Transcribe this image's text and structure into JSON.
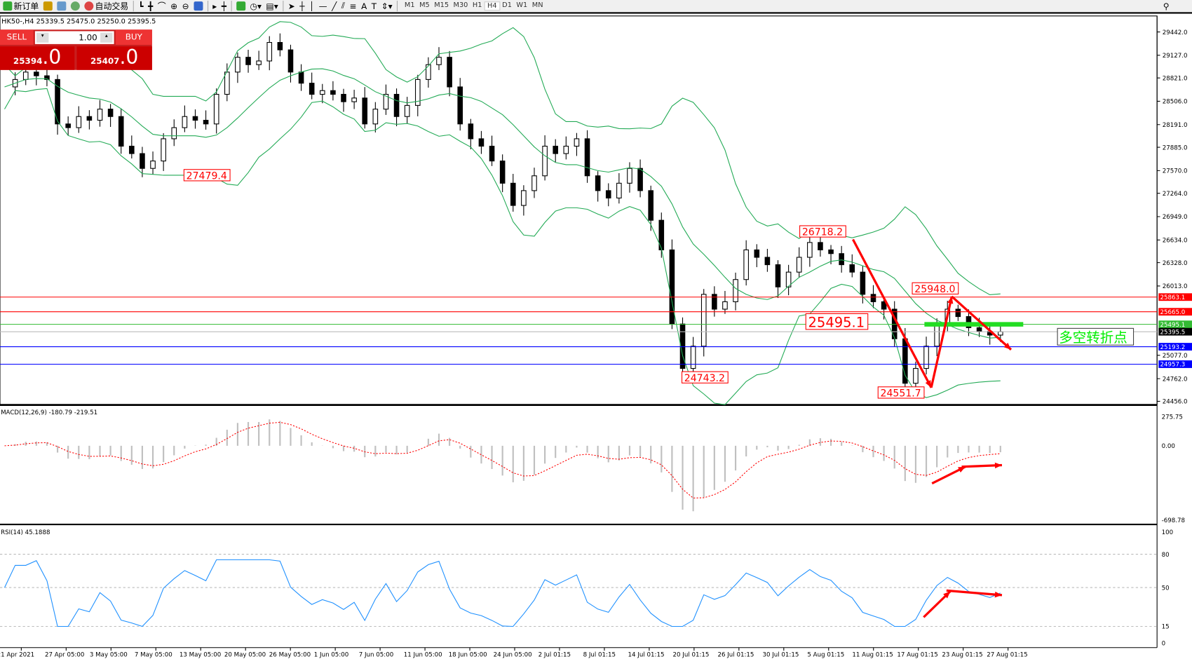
{
  "toolbar": {
    "new_order": "新订单",
    "auto_trade": "自动交易",
    "timeframes": [
      "M1",
      "M5",
      "M15",
      "M30",
      "H1",
      "H4",
      "D1",
      "W1",
      "MN"
    ],
    "active_timeframe": "H4"
  },
  "chart_title": "HK50-,H4  25339.5 25475.0 25250.0 25395.5",
  "trade_panel": {
    "sell_label": "SELL",
    "buy_label": "BUY",
    "lot": "1.00",
    "sell_price_main": "25394",
    "sell_price_frac": ".0",
    "buy_price_main": "25407",
    "buy_price_frac": ".0"
  },
  "chart_data": {
    "type": "candlestick",
    "price_axis_ticks": [
      "29442.0",
      "29127.0",
      "28821.0",
      "28506.0",
      "28191.0",
      "27885.0",
      "27570.0",
      "27264.0",
      "26949.0",
      "26634.0",
      "26328.0",
      "26013.0",
      "25077.0",
      "24762.0",
      "24456.0"
    ],
    "ylim": [
      24456,
      29442
    ],
    "closes": [
      28700,
      28800,
      28900,
      28850,
      28800,
      28200,
      28150,
      28300,
      28250,
      28400,
      28300,
      27900,
      27800,
      27600,
      27700,
      28000,
      28150,
      28300,
      28250,
      28200,
      28600,
      28900,
      29100,
      29000,
      29050,
      29300,
      29200,
      28900,
      28750,
      28600,
      28650,
      28600,
      28500,
      28550,
      28200,
      28400,
      28600,
      28300,
      28450,
      28800,
      29000,
      29100,
      28700,
      28200,
      28000,
      27900,
      27700,
      27400,
      27100,
      27300,
      27500,
      27900,
      27800,
      27900,
      28000,
      27500,
      27300,
      27200,
      27400,
      27600,
      27300,
      26900,
      26500,
      25500,
      24900,
      25200,
      25900,
      25700,
      25800,
      26100,
      26500,
      26400,
      26300,
      26000,
      26200,
      26400,
      26600,
      26500,
      26450,
      26300,
      26200,
      25900,
      25800,
      25700,
      25300,
      24700,
      24900,
      25200,
      25500,
      25700,
      25600,
      25450,
      25400,
      25350,
      25395.5
    ],
    "annotations": [
      {
        "text": "27479.4",
        "price": 27479.4
      },
      {
        "text": "26718.2",
        "price": 26718.2
      },
      {
        "text": "25948.0",
        "price": 25948.0
      },
      {
        "text": "25495.1",
        "price": 25495.1
      },
      {
        "text": "24743.2",
        "price": 24743.2
      },
      {
        "text": "24551.7",
        "price": 24551.7
      }
    ],
    "hlines": [
      {
        "price": 25863.1,
        "label": "25863.1",
        "color": "#ff0000"
      },
      {
        "price": 25665.0,
        "label": "25665.0",
        "color": "#ff0000"
      },
      {
        "price": 25495.1,
        "label": "25495.1",
        "color": "#33bb33"
      },
      {
        "price": 25395.5,
        "label": "25395.5",
        "color": "#000000"
      },
      {
        "price": 25193.2,
        "label": "25193.2",
        "color": "#0000ff"
      },
      {
        "price": 24957.3,
        "label": "24957.3",
        "color": "#0000ff"
      }
    ],
    "text_note": "多空转折点",
    "macd": {
      "label": "MACD(12,26,9) -180.79 -219.51",
      "ticks": [
        "275.75",
        "0.00",
        "-698.78"
      ],
      "ylim": [
        -698.78,
        275.75
      ]
    },
    "rsi": {
      "label": "RSI(14) 45.1888",
      "ticks": [
        "100",
        "80",
        "50",
        "15",
        "0"
      ],
      "levels": [
        80,
        50,
        15
      ]
    },
    "time_labels": [
      "21 Apr 2021",
      "27 Apr 05:00",
      "3 May 05:00",
      "7 May 05:00",
      "13 May 05:00",
      "20 May 05:00",
      "26 May 05:00",
      "1 Jun 05:00",
      "7 Jun 05:00",
      "11 Jun 05:00",
      "18 Jun 05:00",
      "24 Jun 05:00",
      "2 Jul 01:15",
      "8 Jul 01:15",
      "14 Jul 01:15",
      "20 Jul 01:15",
      "26 Jul 01:15",
      "30 Jul 01:15",
      "5 Aug 01:15",
      "11 Aug 01:15",
      "17 Aug 01:15",
      "23 Aug 01:15",
      "27 Aug 01:15"
    ],
    "colors": {
      "bands": "#22aa55",
      "macd_signal": "#ff0000",
      "macd_hist": "#c0c0c0",
      "rsi": "#1e90ff",
      "arrows": "#ff0000",
      "note": "#00ee00"
    }
  }
}
